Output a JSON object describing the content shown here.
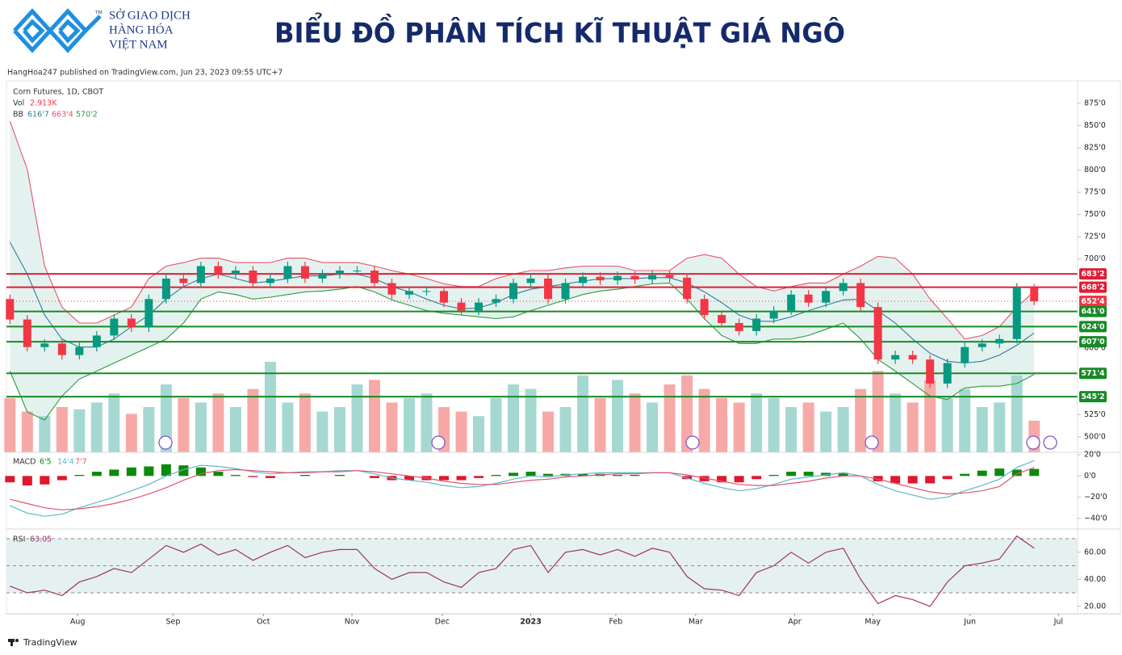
{
  "header": {
    "brand": [
      "SỞ GIAO DỊCH",
      "HÀNG HÓA",
      "VIỆT NAM"
    ],
    "trademark": "TM",
    "title": "BIỂU ĐỒ PHÂN TÍCH KĨ THUẬT GIÁ NGÔ",
    "published": "HangHoa247 published on TradingView.com, Jun 23, 2023 09:55 UTC+7"
  },
  "footer": {
    "brand": "TradingView"
  },
  "chart_data": [
    {
      "type": "candlestick",
      "title": "Corn Futures, 1D, CBOT",
      "open": [
        655,
        632,
        601,
        605,
        592,
        601,
        614,
        633,
        623,
        655,
        678,
        673,
        692,
        683,
        687,
        673,
        678,
        692,
        678,
        683,
        687,
        687,
        673,
        660,
        664,
        664,
        651,
        642,
        651,
        655,
        673,
        678,
        655,
        673,
        680,
        676,
        681,
        677,
        682,
        679,
        655,
        637,
        628,
        619,
        633,
        642,
        660,
        651,
        664,
        673,
        646,
        587,
        592,
        587,
        560,
        583,
        601,
        605,
        610,
        668
      ],
      "high": [
        660,
        637,
        610,
        610,
        606,
        619,
        638,
        638,
        660,
        683,
        683,
        697,
        697,
        692,
        692,
        683,
        697,
        697,
        688,
        692,
        692,
        692,
        678,
        669,
        669,
        669,
        656,
        656,
        660,
        678,
        683,
        683,
        678,
        685,
        685,
        686,
        686,
        687,
        687,
        684,
        660,
        642,
        633,
        638,
        647,
        665,
        665,
        669,
        678,
        678,
        651,
        597,
        597,
        592,
        588,
        606,
        610,
        615,
        673,
        672
      ],
      "low": [
        627,
        596,
        596,
        587,
        587,
        596,
        609,
        618,
        618,
        650,
        668,
        668,
        678,
        678,
        668,
        668,
        673,
        673,
        673,
        678,
        682,
        668,
        655,
        655,
        659,
        646,
        637,
        637,
        646,
        650,
        668,
        650,
        650,
        668,
        671,
        671,
        672,
        672,
        674,
        650,
        632,
        623,
        614,
        614,
        628,
        637,
        646,
        646,
        659,
        641,
        582,
        582,
        582,
        555,
        555,
        578,
        596,
        600,
        605,
        648
      ],
      "close": [
        632,
        601,
        605,
        592,
        601,
        614,
        633,
        623,
        655,
        678,
        673,
        692,
        683,
        687,
        673,
        678,
        692,
        678,
        683,
        687,
        687,
        673,
        660,
        664,
        664,
        651,
        642,
        651,
        655,
        673,
        678,
        655,
        673,
        680,
        676,
        681,
        677,
        682,
        679,
        655,
        637,
        628,
        619,
        633,
        642,
        660,
        651,
        664,
        673,
        646,
        587,
        592,
        587,
        560,
        583,
        601,
        605,
        610,
        668,
        652.5
      ],
      "up_color": "#089981",
      "down_color": "#f23645",
      "volume": {
        "name": "Vol",
        "legend_value": "2.913K",
        "ylim": [
          0,
          250
        ],
        "up_color": "#a6d8d2",
        "down_color": "#f7a9a8",
        "values": [
          120,
          90,
          80,
          100,
          95,
          110,
          130,
          85,
          100,
          150,
          120,
          110,
          130,
          100,
          140,
          200,
          110,
          130,
          90,
          100,
          150,
          160,
          110,
          120,
          130,
          100,
          90,
          80,
          120,
          150,
          140,
          90,
          100,
          170,
          120,
          160,
          130,
          110,
          150,
          170,
          140,
          120,
          110,
          130,
          120,
          100,
          110,
          90,
          100,
          140,
          180,
          130,
          110,
          160,
          120,
          140,
          100,
          110,
          170,
          70
        ]
      },
      "bollinger": {
        "name": "BB",
        "legend_values": [
          "616'7",
          "663'4",
          "570'2"
        ],
        "fill": "#e3f2ef",
        "upper": {
          "color": "#e8516b",
          "values": [
            855,
            801,
            692,
            646,
            628,
            628,
            637,
            646,
            678,
            692,
            696,
            701,
            701,
            696,
            696,
            696,
            701,
            701,
            696,
            696,
            696,
            692,
            687,
            683,
            678,
            672,
            669,
            669,
            678,
            683,
            687,
            687,
            690,
            692,
            692,
            692,
            687,
            687,
            687,
            701,
            705,
            701,
            683,
            669,
            664,
            669,
            673,
            673,
            683,
            692,
            703,
            701,
            683,
            655,
            633,
            610,
            614,
            624,
            646,
            663.5
          ]
        },
        "basis": {
          "color": "#2f7d9c",
          "values": [
            719,
            683,
            637,
            610,
            601,
            601,
            610,
            624,
            637,
            655,
            669,
            678,
            683,
            678,
            673,
            675,
            678,
            681,
            681,
            683,
            683,
            678,
            669,
            663,
            655,
            648,
            644,
            645,
            651,
            660,
            666,
            669,
            672,
            675,
            678,
            678,
            678,
            679,
            679,
            673,
            663,
            651,
            637,
            630,
            630,
            635,
            642,
            648,
            654,
            655,
            642,
            628,
            610,
            594,
            585,
            583,
            585,
            592,
            603,
            616.875
          ]
        },
        "lower": {
          "color": "#2e9b3a",
          "values": [
            574,
            528,
            519,
            546,
            565,
            574,
            583,
            592,
            601,
            610,
            628,
            655,
            663,
            660,
            655,
            657,
            660,
            663,
            664,
            666,
            669,
            663,
            654,
            648,
            642,
            639,
            637,
            635,
            633,
            635,
            642,
            648,
            654,
            660,
            664,
            666,
            669,
            672,
            673,
            655,
            633,
            614,
            605,
            605,
            610,
            610,
            614,
            621,
            628,
            610,
            587,
            574,
            560,
            546,
            542,
            555,
            557,
            557,
            560,
            570.25
          ]
        }
      },
      "levels": [
        {
          "value": 683.25,
          "label": "683'2",
          "color": "#e11d35"
        },
        {
          "value": 668.25,
          "label": "668'2",
          "color": "#e11d35"
        },
        {
          "value": 652.5,
          "label": "652'4",
          "color": "#f23645",
          "style": "dotted"
        },
        {
          "value": 641,
          "label": "641'0",
          "color": "#178a25"
        },
        {
          "value": 624,
          "label": "624'0",
          "color": "#178a25"
        },
        {
          "value": 607,
          "label": "607'0",
          "color": "#178a25"
        },
        {
          "value": 571.5,
          "label": "571'4",
          "color": "#178a25"
        },
        {
          "value": 545.25,
          "label": "545'2",
          "color": "#178a25"
        }
      ],
      "xlim": [
        -0.2,
        61.5
      ],
      "ylim": [
        482.7,
        900.4
      ],
      "yticks": [
        {
          "value": 875,
          "label": "875'0"
        },
        {
          "value": 850,
          "label": "850'0"
        },
        {
          "value": 825,
          "label": "825'0"
        },
        {
          "value": 800,
          "label": "800'0"
        },
        {
          "value": 775,
          "label": "775'0"
        },
        {
          "value": 750,
          "label": "750'0"
        },
        {
          "value": 725,
          "label": "725'0"
        },
        {
          "value": 700,
          "label": "700'0"
        },
        {
          "value": 600,
          "label": "600'0"
        },
        {
          "value": 525,
          "label": "525'0"
        },
        {
          "value": 500,
          "label": "500'0"
        }
      ]
    },
    {
      "type": "macd",
      "name": "MACD",
      "legend_values": [
        "6'5",
        "14'4",
        "7'7"
      ],
      "histogram": {
        "up_color": "#0b8a0b",
        "down_color": "#e0182d",
        "values": [
          -6,
          -9,
          -8,
          -4,
          1,
          4,
          6,
          8,
          9,
          11,
          10,
          8,
          4,
          1,
          -1,
          -2,
          0,
          1,
          0,
          1,
          0,
          -2,
          -4,
          -4,
          -4,
          -4,
          -4,
          -2,
          1,
          3,
          4,
          2,
          2,
          2,
          2,
          1,
          1,
          0,
          0,
          -3,
          -5,
          -6,
          -6,
          -3,
          1,
          4,
          4,
          3,
          3,
          0,
          -5,
          -7,
          -7,
          -7,
          -3,
          2,
          5,
          7,
          6,
          6.625
        ]
      },
      "macd": {
        "color": "#5db7c8",
        "values": [
          -28,
          -35,
          -38,
          -36,
          -30,
          -25,
          -20,
          -14,
          -8,
          0,
          6,
          10,
          9,
          7,
          4,
          2,
          3,
          4,
          4,
          5,
          5,
          2,
          -2,
          -4,
          -6,
          -9,
          -11,
          -10,
          -7,
          -3,
          0,
          -1,
          1,
          2,
          3,
          3,
          3,
          3,
          3,
          -2,
          -7,
          -11,
          -14,
          -12,
          -8,
          -3,
          -1,
          1,
          3,
          0,
          -8,
          -14,
          -18,
          -22,
          -20,
          -14,
          -9,
          -3,
          8,
          14.5
        ]
      },
      "signal": {
        "color": "#e0556e",
        "values": [
          -22,
          -26,
          -30,
          -32,
          -31,
          -29,
          -26,
          -22,
          -17,
          -11,
          -4,
          2,
          5,
          6,
          5,
          4,
          3,
          3,
          4,
          4,
          5,
          4,
          2,
          0,
          -2,
          -5,
          -7,
          -8,
          -8,
          -6,
          -4,
          -3,
          -1,
          0,
          1,
          2,
          2,
          3,
          3,
          1,
          -2,
          -5,
          -8,
          -9,
          -9,
          -7,
          -5,
          -2,
          0,
          0,
          -3,
          -7,
          -11,
          -15,
          -17,
          -16,
          -14,
          -10,
          2,
          7.875
        ]
      },
      "xlim": [
        -0.2,
        61.5
      ],
      "ylim": [
        -48.5,
        20.8
      ],
      "yticks": [
        {
          "value": 20,
          "label": "20'0"
        },
        {
          "value": 0,
          "label": "0'0"
        },
        {
          "value": -20,
          "label": "−20'0"
        },
        {
          "value": -40,
          "label": "−40'0"
        }
      ]
    },
    {
      "type": "rsi",
      "name": "RSI",
      "color": "#a1326a",
      "bands": [
        70,
        50,
        30
      ],
      "band_fill": "#e4f1f0",
      "values": [
        35,
        30,
        32,
        28,
        38,
        42,
        48,
        45,
        55,
        65,
        60,
        66,
        58,
        62,
        54,
        60,
        65,
        56,
        60,
        62,
        62,
        48,
        40,
        45,
        45,
        38,
        34,
        45,
        48,
        62,
        65,
        45,
        60,
        62,
        58,
        62,
        57,
        63,
        60,
        42,
        33,
        32,
        28,
        45,
        50,
        60,
        52,
        60,
        63,
        40,
        22,
        28,
        25,
        20,
        38,
        50,
        52,
        55,
        72,
        63.05
      ],
      "xlim": [
        -0.2,
        61.5
      ],
      "ylim": [
        14.5,
        76
      ],
      "yticks": [
        {
          "value": 60,
          "label": "60.00"
        },
        {
          "value": 40,
          "label": "40.00"
        },
        {
          "value": 20,
          "label": "20.00"
        }
      ],
      "xticks": [
        {
          "value": 3.9,
          "label": "Aug"
        },
        {
          "value": 9.4,
          "label": "Sep"
        },
        {
          "value": 14.6,
          "label": "Oct"
        },
        {
          "value": 19.7,
          "label": "Nov"
        },
        {
          "value": 24.9,
          "label": "Dec"
        },
        {
          "value": 30,
          "label": "2023"
        },
        {
          "value": 34.9,
          "label": "Feb"
        },
        {
          "value": 39.5,
          "label": "Mar"
        },
        {
          "value": 45.2,
          "label": "Apr"
        },
        {
          "value": 49.7,
          "label": "May"
        },
        {
          "value": 55.3,
          "label": "Jun"
        },
        {
          "value": 60.4,
          "label": "Jul"
        }
      ]
    }
  ]
}
